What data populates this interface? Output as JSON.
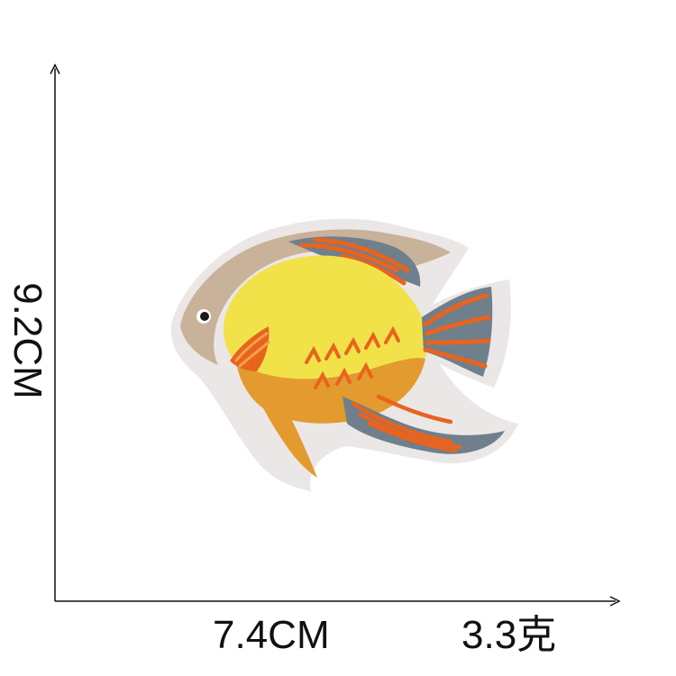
{
  "product": {
    "subject": "fish-embroidered-patch",
    "height_label": "9.2CM",
    "width_label": "7.4CM",
    "weight_label": "3.3克"
  },
  "colors": {
    "background": "#ffffff",
    "axis": "#111111",
    "patch_backing": "#ebe7e7",
    "border_tan": "#c8b29a",
    "body_yellow": "#f2e24a",
    "belly_orange": "#e39a2e",
    "accent_orange": "#e8641e",
    "fin_slate": "#6f7f8c",
    "eye": "#1a1a1a"
  }
}
